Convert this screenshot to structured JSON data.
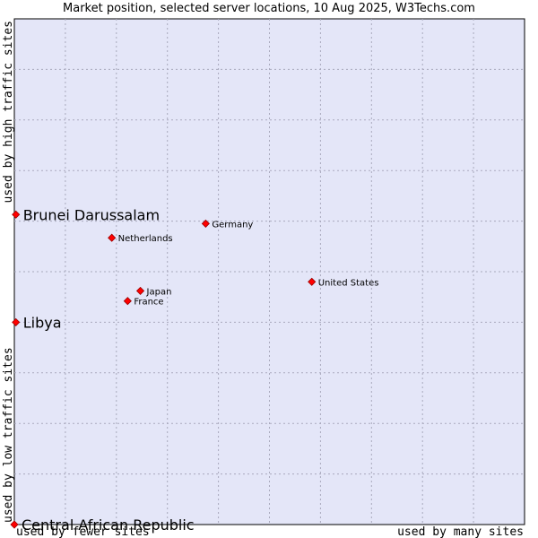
{
  "chart_data": {
    "type": "scatter",
    "title": "Market position, selected server locations, 10 Aug 2025, W3Techs.com",
    "xlabel_low": "used by fewer sites",
    "xlabel_high": "used by many sites",
    "ylabel_low": "used by low traffic sites",
    "ylabel_high": "used by high traffic sites",
    "xlim": [
      0,
      100
    ],
    "ylim": [
      0,
      100
    ],
    "grid": true,
    "series": [
      {
        "name": "Brunei Darussalam",
        "x": 0.3,
        "y": 61.3,
        "label_size": "large"
      },
      {
        "name": "Libya",
        "x": 0.3,
        "y": 40.0,
        "label_size": "large"
      },
      {
        "name": "Central African Republic",
        "x": 0.0,
        "y": 0.0,
        "label_size": "large"
      },
      {
        "name": "Germany",
        "x": 37.5,
        "y": 59.5,
        "label_size": "small"
      },
      {
        "name": "Netherlands",
        "x": 19.1,
        "y": 56.7,
        "label_size": "small"
      },
      {
        "name": "United States",
        "x": 58.3,
        "y": 48.0,
        "label_size": "small"
      },
      {
        "name": "Japan",
        "x": 24.7,
        "y": 46.2,
        "label_size": "small"
      },
      {
        "name": "France",
        "x": 22.2,
        "y": 44.2,
        "label_size": "small"
      }
    ],
    "colors": {
      "plot_bg": "#e4e6f8",
      "grid": "#a9a9bd",
      "marker": "#ff0000",
      "marker_edge": "#9b0000"
    }
  }
}
